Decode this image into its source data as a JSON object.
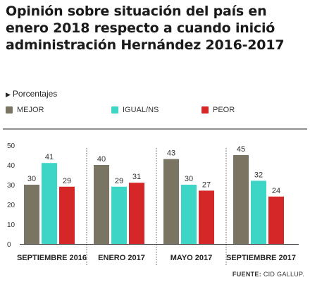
{
  "title_lines": [
    "Opinión sobre situación del país en",
    "enero 2018 respecto a cuando inició",
    "administración Hernández 2016-2017"
  ],
  "subtitle": "Porcentajes",
  "source_label": "FUENTE:",
  "source_name": " CID GALLUP.",
  "colors": {
    "mejor": "#7a7462",
    "igual": "#3dd6c6",
    "peor": "#d62728"
  },
  "chart_data": {
    "type": "bar",
    "categories": [
      "SEPTIEMBRE 2016",
      "ENERO 2017",
      "MAYO 2017",
      "SEPTIEMBRE 2017"
    ],
    "series": [
      {
        "name": "MEJOR",
        "values": [
          30,
          40,
          43,
          45
        ]
      },
      {
        "name": "IGUAL/NS",
        "values": [
          41,
          29,
          30,
          32
        ]
      },
      {
        "name": "PEOR",
        "values": [
          29,
          31,
          27,
          24
        ]
      }
    ],
    "ylim": [
      0,
      50
    ],
    "yticks": [
      0,
      10,
      20,
      30,
      40,
      50
    ],
    "legend": "top",
    "grid": false,
    "data_labels": true
  }
}
